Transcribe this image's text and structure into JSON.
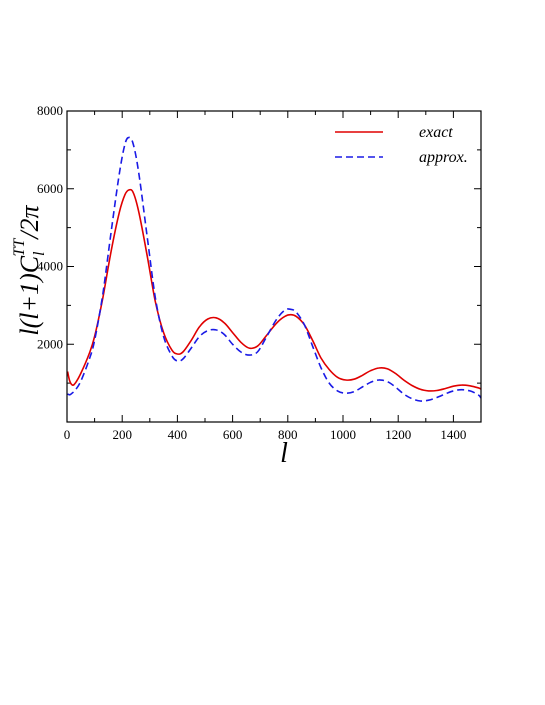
{
  "chart_data": {
    "type": "line",
    "xlabel": "l",
    "ylabel": {
      "base": "l(l+1)C",
      "sub": "l",
      "sup": "TT",
      "tail": "/2",
      "greek": "π"
    },
    "xlim": [
      0,
      1500
    ],
    "ylim": [
      0,
      8000
    ],
    "xticks": [
      0,
      200,
      400,
      600,
      800,
      1000,
      1200,
      1400
    ],
    "yticks": [
      2000,
      4000,
      6000,
      8000
    ],
    "grid": false,
    "legend": "top-right",
    "series": [
      {
        "name": "exact",
        "style": "solid",
        "color": "#e00000",
        "x": [
          2,
          10,
          20,
          30,
          50,
          80,
          100,
          130,
          160,
          190,
          210,
          225,
          240,
          260,
          290,
          320,
          350,
          380,
          400,
          420,
          450,
          480,
          510,
          540,
          570,
          600,
          630,
          660,
          690,
          720,
          760,
          790,
          810,
          830,
          860,
          890,
          920,
          950,
          980,
          1010,
          1040,
          1070,
          1100,
          1130,
          1160,
          1190,
          1220,
          1250,
          1280,
          1310,
          1340,
          1370,
          1400,
          1430,
          1460,
          1490,
          1500
        ],
        "y": [
          1300,
          1050,
          950,
          1000,
          1250,
          1750,
          2200,
          3200,
          4400,
          5400,
          5850,
          5970,
          5900,
          5400,
          4300,
          3100,
          2300,
          1850,
          1750,
          1800,
          2100,
          2450,
          2650,
          2680,
          2550,
          2300,
          2050,
          1900,
          1950,
          2200,
          2550,
          2720,
          2760,
          2720,
          2500,
          2100,
          1650,
          1350,
          1150,
          1080,
          1100,
          1200,
          1320,
          1390,
          1370,
          1250,
          1080,
          940,
          840,
          800,
          810,
          860,
          920,
          950,
          930,
          880,
          850
        ]
      },
      {
        "name": "approx.",
        "style": "dashed",
        "color": "#1a1ae6",
        "x": [
          2,
          10,
          20,
          30,
          50,
          80,
          100,
          130,
          160,
          190,
          210,
          225,
          240,
          260,
          290,
          320,
          350,
          380,
          400,
          420,
          450,
          480,
          510,
          540,
          570,
          600,
          630,
          660,
          690,
          720,
          760,
          790,
          810,
          830,
          860,
          890,
          920,
          950,
          980,
          1010,
          1040,
          1070,
          1100,
          1130,
          1160,
          1190,
          1220,
          1250,
          1280,
          1310,
          1340,
          1370,
          1400,
          1430,
          1460,
          1490,
          1500
        ],
        "y": [
          720,
          700,
          750,
          820,
          1050,
          1600,
          2100,
          3300,
          4900,
          6400,
          7150,
          7320,
          7150,
          6400,
          4800,
          3200,
          2200,
          1700,
          1570,
          1620,
          1900,
          2200,
          2350,
          2370,
          2250,
          2000,
          1800,
          1720,
          1800,
          2150,
          2650,
          2880,
          2900,
          2830,
          2500,
          1950,
          1400,
          1000,
          800,
          740,
          780,
          900,
          1020,
          1080,
          1040,
          900,
          720,
          600,
          540,
          560,
          630,
          720,
          800,
          830,
          800,
          700,
          620
        ]
      }
    ]
  }
}
